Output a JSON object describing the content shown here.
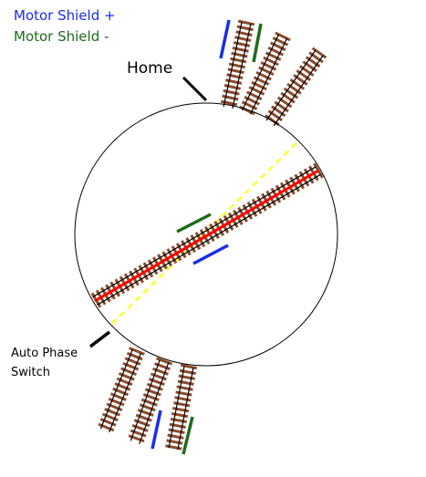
{
  "legend": {
    "plus": {
      "label": "Motor Shield +",
      "color": "#1a2ee8"
    },
    "minus": {
      "label": "Motor Shield -",
      "color": "#1e6b1e"
    }
  },
  "labels": {
    "home": "Home",
    "switch_line1": "Auto Phase",
    "switch_line2": "Switch"
  },
  "colors": {
    "rail": "#000000",
    "tie": "#8b4a2b",
    "bridge_center": "#ff0000",
    "phase_line": "#ffff00",
    "plus": "#1a2ee8",
    "minus": "#1e6b1e"
  }
}
